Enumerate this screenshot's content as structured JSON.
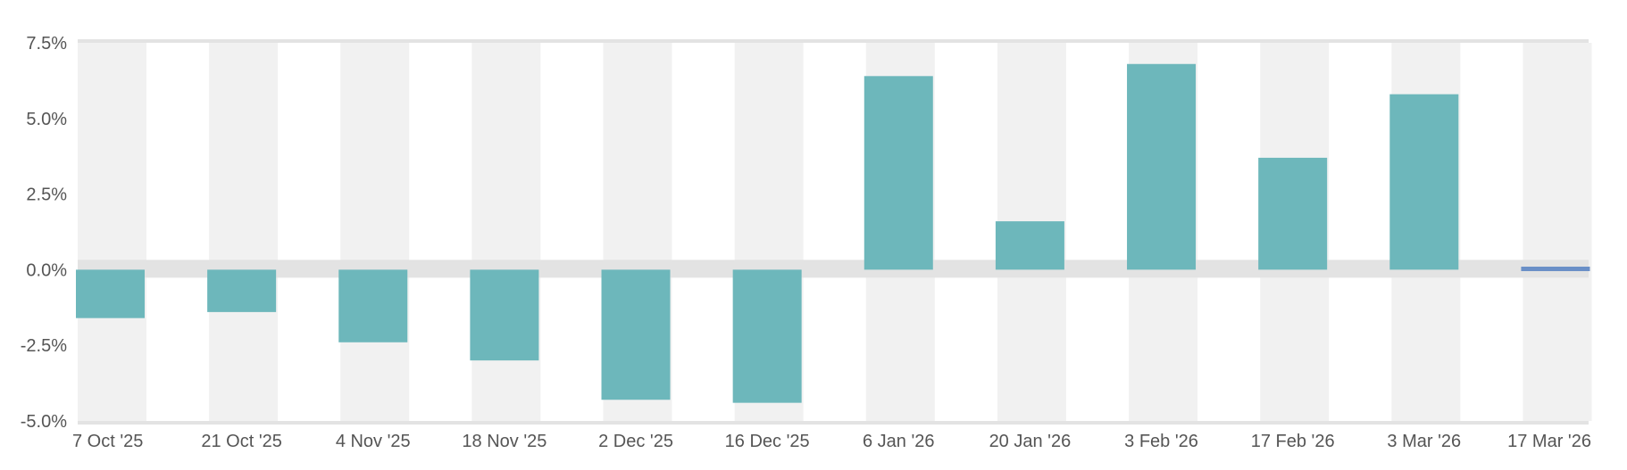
{
  "chart_data": {
    "type": "bar",
    "categories": [
      "7 Oct '25",
      "21 Oct '25",
      "4 Nov '25",
      "18 Nov '25",
      "2 Dec '25",
      "16 Dec '25",
      "6 Jan '26",
      "20 Jan '26",
      "3 Feb '26",
      "17 Feb '26",
      "3 Mar '26",
      "17 Mar '26"
    ],
    "values": [
      -1.6,
      -1.4,
      -2.4,
      -3.0,
      -4.3,
      -4.4,
      6.4,
      1.6,
      6.8,
      3.7,
      5.8,
      0.1
    ],
    "ylim": [
      -5.0,
      7.5
    ],
    "yticks": [
      -5.0,
      -2.5,
      0.0,
      2.5,
      5.0,
      7.5
    ],
    "ytick_labels": [
      "-5.0%",
      "-2.5%",
      "0.0%",
      "2.5%",
      "5.0%",
      "7.5%"
    ],
    "title": "",
    "xlabel": "",
    "ylabel": "",
    "grid": "alternating vertical bands",
    "colors": {
      "bar": "#6db7bb",
      "last_bar": "#6a8fc7",
      "band": "#f1f1f1",
      "axis": "#e3e3e3",
      "label": "#555555"
    }
  }
}
